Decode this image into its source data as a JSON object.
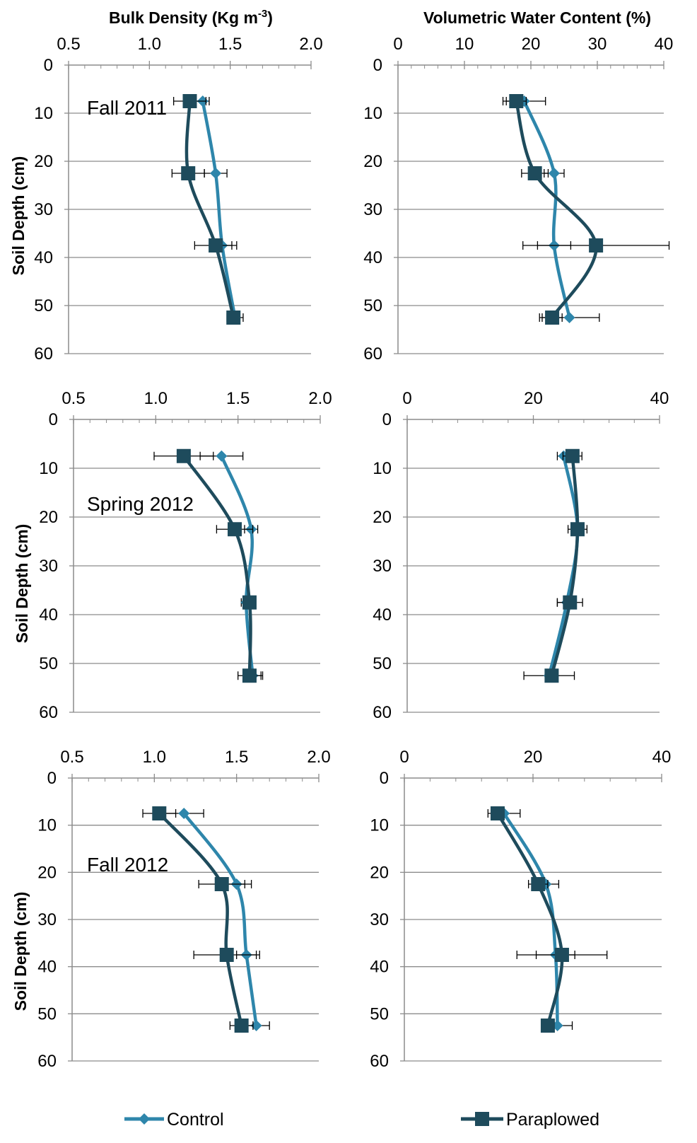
{
  "colors": {
    "control": "#2E86AB",
    "paraplowed": "#1E4B5C",
    "grid": "#8C8C8C",
    "axis": "#8C8C8C"
  },
  "top_titles": {
    "bulk_density": "Bulk Density (Kg m",
    "bulk_density_sup": "-3",
    "bulk_density_close": ")",
    "vwc": "Volumetric Water Content  (%)"
  },
  "y_axis_label": "Soil Depth (cm)",
  "legend": {
    "control": "Control",
    "paraplowed": "Paraplowed"
  },
  "chart_data": [
    {
      "type": "line",
      "id": "bd-fall2011",
      "panel_label": "Fall 2011",
      "xlim": [
        0.5,
        2.0
      ],
      "xticks": [
        "0.5",
        "1.0",
        "1.5",
        "2.0"
      ],
      "ylim": [
        0,
        60
      ],
      "yticks": [
        "0",
        "10",
        "20",
        "30",
        "40",
        "50",
        "60"
      ],
      "y_reversed": true,
      "grid": true,
      "series": [
        {
          "name": "Control",
          "key": "control",
          "marker": "diamond",
          "points": [
            [
              1.33,
              7.5
            ],
            [
              1.41,
              22.5
            ],
            [
              1.45,
              37.5
            ],
            [
              1.53,
              52.5
            ]
          ],
          "err": [
            0.04,
            0.07,
            0.06,
            0.05
          ]
        },
        {
          "name": "Paraplowed",
          "key": "paraplowed",
          "marker": "square",
          "points": [
            [
              1.25,
              7.5
            ],
            [
              1.24,
              22.5
            ],
            [
              1.41,
              37.5
            ],
            [
              1.52,
              52.5
            ]
          ],
          "err": [
            0.1,
            0.1,
            0.13,
            0.02
          ]
        }
      ]
    },
    {
      "type": "line",
      "id": "vwc-fall2011",
      "panel_label": "",
      "xlim": [
        0,
        40
      ],
      "xticks": [
        "0",
        "10",
        "20",
        "30",
        "40"
      ],
      "ylim": [
        0,
        60
      ],
      "yticks": [
        "0",
        "10",
        "20",
        "30",
        "40",
        "50",
        "60"
      ],
      "y_reversed": true,
      "grid": true,
      "series": [
        {
          "name": "Control",
          "key": "control",
          "marker": "diamond",
          "points": [
            [
              19,
              7.5
            ],
            [
              23.5,
              22.5
            ],
            [
              23.5,
              37.5
            ],
            [
              25.8,
              52.5
            ]
          ],
          "err": [
            3.2,
            1.5,
            2.5,
            4.5
          ]
        },
        {
          "name": "Paraplowed",
          "key": "paraplowed",
          "marker": "square",
          "points": [
            [
              17.8,
              7.5
            ],
            [
              20.6,
              22.5
            ],
            [
              29.8,
              37.5
            ],
            [
              23.2,
              52.5
            ]
          ],
          "err": [
            1.5,
            2.0,
            11.0,
            1.5
          ]
        }
      ]
    },
    {
      "type": "line",
      "id": "bd-spring2012",
      "panel_label": "Spring  2012",
      "xlim": [
        0.5,
        2.0
      ],
      "xticks": [
        "0.5",
        "1.0",
        "1.5",
        "2.0"
      ],
      "ylim": [
        0,
        60
      ],
      "yticks": [
        "0",
        "10",
        "20",
        "30",
        "40",
        "50",
        "60"
      ],
      "y_reversed": true,
      "grid": true,
      "series": [
        {
          "name": "Control",
          "key": "control",
          "marker": "diamond",
          "points": [
            [
              1.4,
              7.5
            ],
            [
              1.58,
              22.5
            ],
            [
              1.55,
              37.5
            ],
            [
              1.59,
              52.5
            ]
          ],
          "err": [
            0.13,
            0.04,
            0.03,
            0.06
          ]
        },
        {
          "name": "Paraplowed",
          "key": "paraplowed",
          "marker": "square",
          "points": [
            [
              1.17,
              7.5
            ],
            [
              1.48,
              22.5
            ],
            [
              1.57,
              37.5
            ],
            [
              1.57,
              52.5
            ]
          ],
          "err": [
            0.18,
            0.11,
            0.03,
            0.07
          ]
        }
      ]
    },
    {
      "type": "line",
      "id": "vwc-spring2012",
      "panel_label": "",
      "xlim": [
        0,
        40
      ],
      "xticks": [
        "0",
        "20",
        "40"
      ],
      "ylim": [
        0,
        60
      ],
      "yticks": [
        "0",
        "10",
        "20",
        "30",
        "40",
        "50",
        "60"
      ],
      "y_reversed": true,
      "grid": true,
      "series": [
        {
          "name": "Control",
          "key": "control",
          "marker": "diamond",
          "points": [
            [
              24.8,
              7.5
            ],
            [
              27,
              22.5
            ],
            [
              25.3,
              37.5
            ],
            [
              22.5,
              52.5
            ]
          ],
          "err": [
            1.0,
            1.0,
            1.5,
            4.0
          ]
        },
        {
          "name": "Paraplowed",
          "key": "paraplowed",
          "marker": "square",
          "points": [
            [
              26.2,
              7.5
            ],
            [
              27.0,
              22.5
            ],
            [
              25.8,
              37.5
            ],
            [
              22.9,
              52.5
            ]
          ],
          "err": [
            1.5,
            1.5,
            2.0,
            1.0
          ]
        }
      ]
    },
    {
      "type": "line",
      "id": "bd-fall2012",
      "panel_label": "Fall 2012",
      "xlim": [
        0.5,
        2.0
      ],
      "xticks": [
        "0.5",
        "1.0",
        "1.5",
        "2.0"
      ],
      "ylim": [
        0,
        60
      ],
      "yticks": [
        "0",
        "10",
        "20",
        "30",
        "40",
        "50",
        "60"
      ],
      "y_reversed": true,
      "grid": true,
      "series": [
        {
          "name": "Control",
          "key": "control",
          "marker": "diamond",
          "points": [
            [
              1.18,
              7.5
            ],
            [
              1.5,
              22.5
            ],
            [
              1.56,
              37.5
            ],
            [
              1.62,
              52.5
            ]
          ],
          "err": [
            0.12,
            0.09,
            0.06,
            0.08
          ]
        },
        {
          "name": "Paraplowed",
          "key": "paraplowed",
          "marker": "square",
          "points": [
            [
              1.03,
              7.5
            ],
            [
              1.41,
              22.5
            ],
            [
              1.44,
              37.5
            ],
            [
              1.53,
              52.5
            ]
          ],
          "err": [
            0.1,
            0.14,
            0.2,
            0.07
          ]
        }
      ]
    },
    {
      "type": "line",
      "id": "vwc-fall2012",
      "panel_label": "",
      "xlim": [
        0,
        40
      ],
      "xticks": [
        "0",
        "20",
        "40"
      ],
      "ylim": [
        0,
        60
      ],
      "yticks": [
        "0",
        "10",
        "20",
        "30",
        "40",
        "50",
        "60"
      ],
      "y_reversed": true,
      "grid": true,
      "series": [
        {
          "name": "Control",
          "key": "control",
          "marker": "diamond",
          "points": [
            [
              15.5,
              7.5
            ],
            [
              22,
              22.5
            ],
            [
              23.5,
              37.5
            ],
            [
              23.8,
              52.5
            ]
          ],
          "err": [
            2.5,
            2.0,
            3.0,
            2.3
          ]
        },
        {
          "name": "Paraplowed",
          "key": "paraplowed",
          "marker": "square",
          "points": [
            [
              14.5,
              7.5
            ],
            [
              20.8,
              22.5
            ],
            [
              24.5,
              37.5
            ],
            [
              22.3,
              52.5
            ]
          ],
          "err": [
            1.0,
            1.5,
            7.0,
            1.0
          ]
        }
      ]
    }
  ]
}
